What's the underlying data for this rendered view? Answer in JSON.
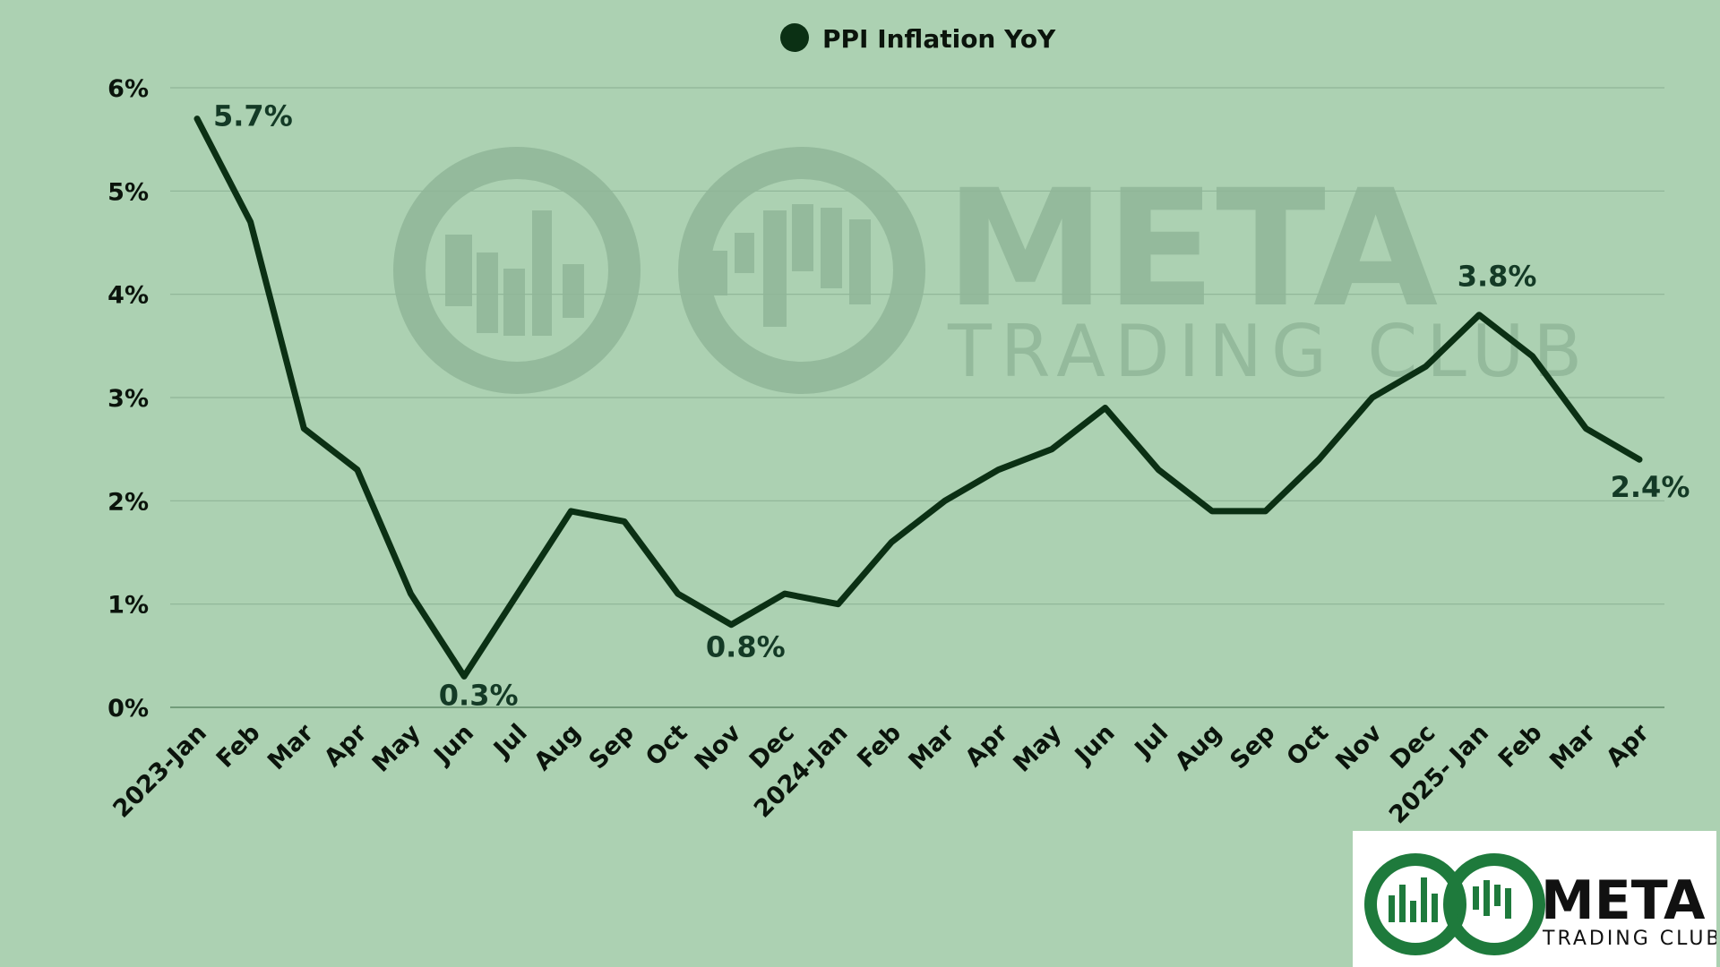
{
  "chart_data": {
    "type": "line",
    "title": "",
    "xlabel": "",
    "ylabel": "",
    "legend": {
      "position": "top-center",
      "entries": [
        "PPI Inflation YoY"
      ]
    },
    "categories": [
      "2023-Jan",
      "Feb",
      "Mar",
      "Apr",
      "May",
      "Jun",
      "Jul",
      "Aug",
      "Sep",
      "Oct",
      "Nov",
      "Dec",
      "2024-Jan",
      "Feb",
      "Mar",
      "Apr",
      "May",
      "Jun",
      "Jul",
      "Aug",
      "Sep",
      "Oct",
      "Nov",
      "Dec",
      "2025- Jan",
      "Feb",
      "Mar",
      "Apr"
    ],
    "series": [
      {
        "name": "PPI Inflation YoY",
        "color": "#0b3014",
        "values": [
          5.7,
          4.7,
          2.7,
          2.3,
          1.1,
          0.3,
          1.1,
          1.9,
          1.8,
          1.1,
          0.8,
          1.1,
          1.0,
          1.6,
          2.0,
          2.3,
          2.5,
          2.9,
          2.3,
          1.9,
          1.9,
          2.4,
          3.0,
          3.3,
          3.8,
          3.4,
          2.7,
          2.4
        ]
      }
    ],
    "ylim": [
      0,
      6
    ],
    "yticks": [
      "0%",
      "1%",
      "2%",
      "3%",
      "4%",
      "5%",
      "6%"
    ],
    "grid": true,
    "annotations": [
      {
        "index": 0,
        "text": "5.7%"
      },
      {
        "index": 5,
        "text": "0.3%"
      },
      {
        "index": 10,
        "text": "0.8%"
      },
      {
        "index": 24,
        "text": "3.8%"
      },
      {
        "index": 27,
        "text": "2.4%"
      }
    ]
  },
  "watermark": {
    "line1": "META",
    "line2": "TRADING CLUB"
  },
  "logo": {
    "line1": "META",
    "line2": "TRADING CLUB",
    "color": "#1e7a3c"
  },
  "colors": {
    "background": "#acd1b2",
    "grid": "#8fb597",
    "line": "#0b3014",
    "label": "#143a26"
  }
}
